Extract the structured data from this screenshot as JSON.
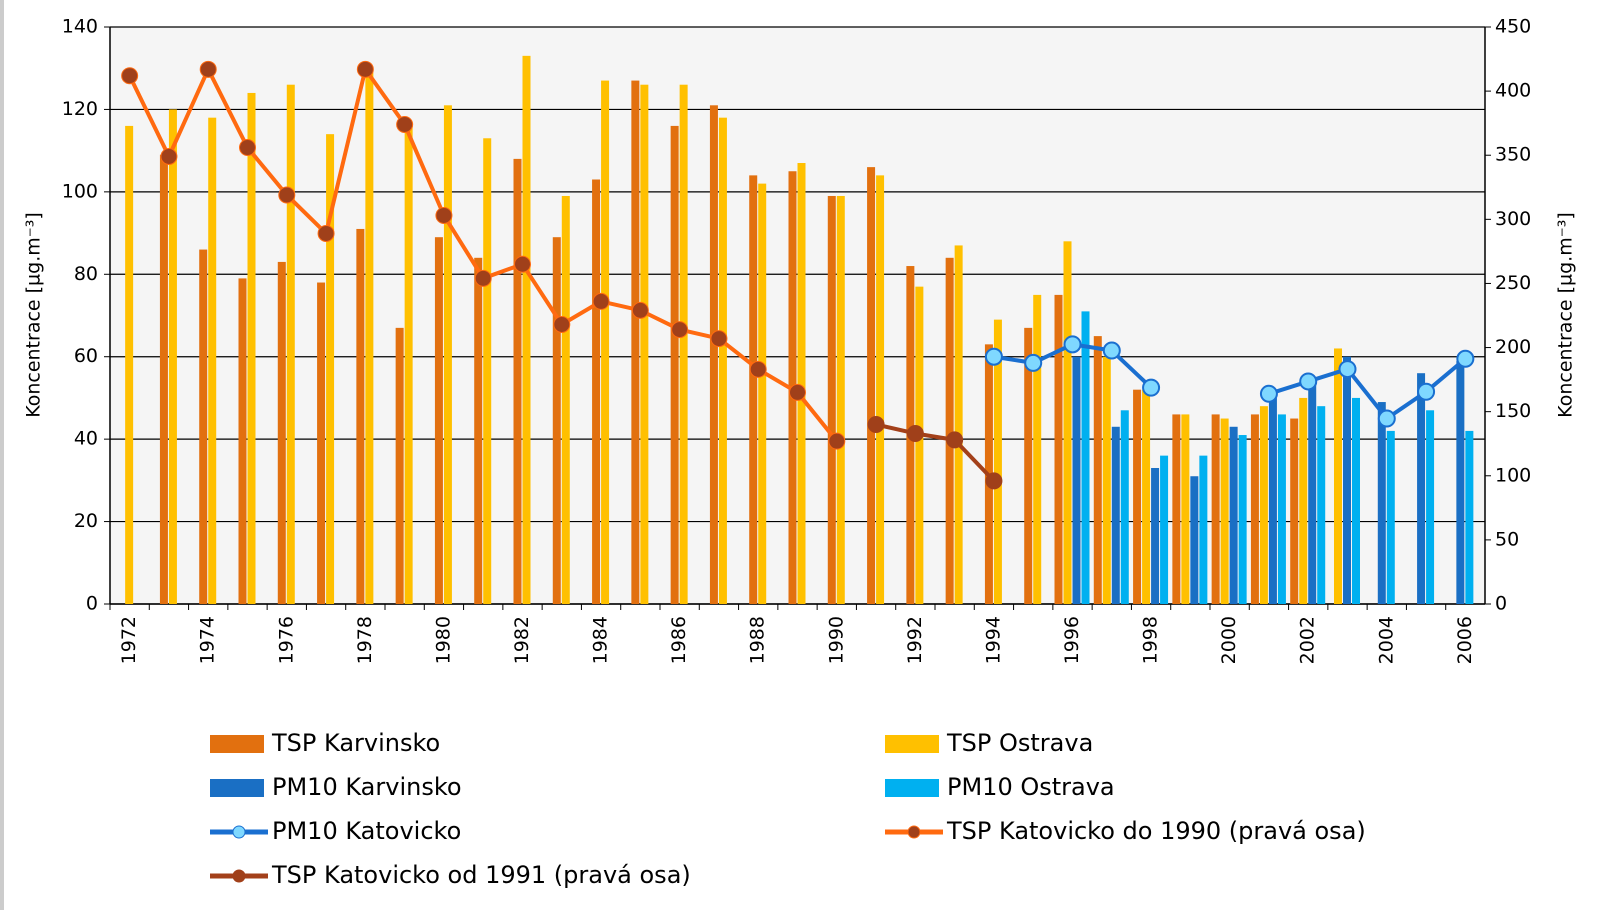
{
  "chart_data": {
    "type": "combo",
    "ylabel": "Koncentrace [µg.m⁻³]",
    "y2label": "Koncentrace [µg.m⁻³]",
    "categories": [
      "1972",
      null,
      "1974",
      null,
      "1976",
      null,
      "1978",
      null,
      "1980",
      null,
      "1982",
      null,
      "1984",
      null,
      "1986",
      null,
      "1988",
      null,
      "1990",
      null,
      "1992",
      null,
      "1994",
      null,
      "1996",
      null,
      "1998",
      null,
      "2000",
      null,
      "2002",
      null,
      "2004",
      null,
      "2006"
    ],
    "ylim": [
      0,
      140
    ],
    "yticks": [
      0,
      20,
      40,
      60,
      80,
      100,
      120,
      140
    ],
    "y2lim": [
      0,
      450
    ],
    "y2ticks": [
      0,
      50,
      100,
      150,
      200,
      250,
      300,
      350,
      400,
      450
    ],
    "grid": true,
    "series": [
      {
        "name": "TSP Karvinsko",
        "type": "bar",
        "color": "#e2700f",
        "values": [
          null,
          109,
          86,
          79,
          83,
          78,
          91,
          67,
          89,
          84,
          108,
          89,
          103,
          127,
          116,
          121,
          104,
          105,
          99,
          106,
          82,
          84,
          63,
          67,
          75,
          65,
          52,
          46,
          46,
          46,
          45,
          null,
          null,
          null,
          null
        ]
      },
      {
        "name": "TSP Ostrava",
        "type": "bar",
        "color": "#ffc000",
        "values": [
          116,
          120,
          118,
          124,
          126,
          114,
          129,
          117,
          121,
          113,
          133,
          99,
          127,
          126,
          126,
          118,
          102,
          107,
          99,
          104,
          77,
          87,
          69,
          75,
          88,
          60,
          52,
          46,
          45,
          48,
          50,
          62,
          null,
          null,
          null
        ]
      },
      {
        "name": "PM10 Karvinsko",
        "type": "bar",
        "color": "#1a6fc4",
        "values": [
          null,
          null,
          null,
          null,
          null,
          null,
          null,
          null,
          null,
          null,
          null,
          null,
          null,
          null,
          null,
          null,
          null,
          null,
          null,
          null,
          null,
          null,
          null,
          null,
          60,
          43,
          33,
          31,
          43,
          50,
          53,
          60,
          49,
          56,
          59
        ]
      },
      {
        "name": "PM10 Ostrava",
        "type": "bar",
        "color": "#00b0f0",
        "values": [
          null,
          null,
          null,
          null,
          null,
          null,
          null,
          null,
          null,
          null,
          null,
          null,
          null,
          null,
          null,
          null,
          null,
          null,
          null,
          null,
          null,
          null,
          null,
          null,
          71,
          47,
          36,
          36,
          41,
          46,
          48,
          50,
          42,
          47,
          42
        ]
      },
      {
        "name": "PM10 Katovicko",
        "type": "line",
        "color": "#1a6fd0",
        "marker_color": "#7fd8ff",
        "values": [
          null,
          null,
          null,
          null,
          null,
          null,
          null,
          null,
          null,
          null,
          null,
          null,
          null,
          null,
          null,
          null,
          null,
          null,
          null,
          null,
          null,
          null,
          60,
          58.5,
          63,
          61.5,
          52.5,
          null,
          null,
          51,
          54,
          57,
          45,
          51.5,
          59.5
        ]
      },
      {
        "name": "TSP Katovicko do 1990 (pravá osa)",
        "type": "line",
        "axis": "y2",
        "color": "#ff6a10",
        "marker_color": "#a0401a",
        "values": [
          412,
          349,
          417,
          356,
          319,
          289,
          417,
          374,
          303,
          254,
          265,
          218,
          236,
          229,
          214,
          207,
          183,
          165,
          127,
          null,
          null,
          null,
          null,
          null,
          null,
          null,
          null,
          null,
          null,
          null,
          null,
          null,
          null,
          null,
          null
        ]
      },
      {
        "name": "TSP Katovicko od 1991 (pravá osa)",
        "type": "line",
        "axis": "y2",
        "color": "#a3401a",
        "marker_color": "#a0401a",
        "values": [
          null,
          null,
          null,
          null,
          null,
          null,
          null,
          null,
          null,
          null,
          null,
          null,
          null,
          null,
          null,
          null,
          null,
          null,
          null,
          140,
          133,
          128,
          96,
          null,
          null,
          null,
          null,
          null,
          null,
          null,
          null,
          null,
          null,
          null,
          null
        ]
      }
    ]
  }
}
